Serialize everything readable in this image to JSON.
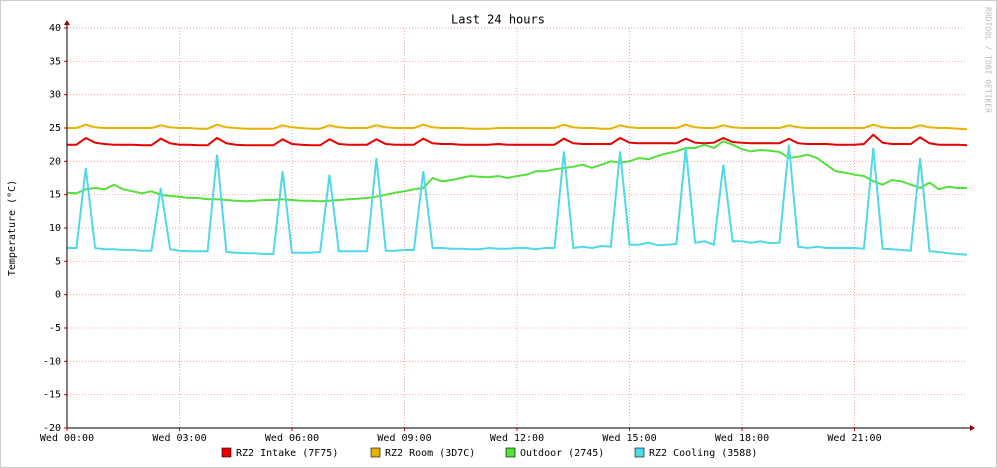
{
  "chart_data": {
    "type": "line",
    "title": "Last 24 hours",
    "y_label": "Temperature (°C)",
    "watermark": "RRDTOOL / TOBI OETIKER",
    "xlim": [
      0,
      24
    ],
    "xticks": [
      {
        "value": 0,
        "label": "Wed 00:00"
      },
      {
        "value": 3,
        "label": "Wed 03:00"
      },
      {
        "value": 6,
        "label": "Wed 06:00"
      },
      {
        "value": 9,
        "label": "Wed 09:00"
      },
      {
        "value": 12,
        "label": "Wed 12:00"
      },
      {
        "value": 15,
        "label": "Wed 15:00"
      },
      {
        "value": 18,
        "label": "Wed 18:00"
      },
      {
        "value": 21,
        "label": "Wed 21:00"
      }
    ],
    "ylim": [
      -20,
      40
    ],
    "yticks": [
      -20,
      -15,
      -10,
      -5,
      0,
      5,
      10,
      15,
      20,
      25,
      30,
      35,
      40
    ],
    "grid": true,
    "x": [
      0,
      0.25,
      0.5,
      0.75,
      1,
      1.25,
      1.5,
      1.75,
      2,
      2.25,
      2.5,
      2.75,
      3,
      3.25,
      3.5,
      3.75,
      4,
      4.25,
      4.5,
      4.75,
      5,
      5.25,
      5.5,
      5.75,
      6,
      6.25,
      6.5,
      6.75,
      7,
      7.25,
      7.5,
      7.75,
      8,
      8.25,
      8.5,
      8.75,
      9,
      9.25,
      9.5,
      9.75,
      10,
      10.25,
      10.5,
      10.75,
      11,
      11.25,
      11.5,
      11.75,
      12,
      12.25,
      12.5,
      12.75,
      13,
      13.25,
      13.5,
      13.75,
      14,
      14.25,
      14.5,
      14.75,
      15,
      15.25,
      15.5,
      15.75,
      16,
      16.25,
      16.5,
      16.75,
      17,
      17.25,
      17.5,
      17.75,
      18,
      18.25,
      18.5,
      18.75,
      19,
      19.25,
      19.5,
      19.75,
      20,
      20.25,
      20.5,
      20.75,
      21,
      21.25,
      21.5,
      21.75,
      22,
      22.25,
      22.5,
      22.75,
      23,
      23.25,
      23.5,
      23.75,
      24
    ],
    "series": [
      {
        "name": "RZ2 Intake (7F75)",
        "color": "#e60000",
        "values": [
          22.5,
          22.5,
          23.5,
          22.8,
          22.6,
          22.5,
          22.5,
          22.5,
          22.4,
          22.4,
          23.4,
          22.7,
          22.5,
          22.5,
          22.4,
          22.4,
          23.5,
          22.7,
          22.5,
          22.4,
          22.4,
          22.4,
          22.4,
          23.3,
          22.6,
          22.5,
          22.4,
          22.4,
          23.3,
          22.6,
          22.5,
          22.5,
          22.5,
          23.3,
          22.6,
          22.5,
          22.5,
          22.5,
          23.4,
          22.7,
          22.6,
          22.6,
          22.5,
          22.5,
          22.5,
          22.5,
          22.6,
          22.5,
          22.5,
          22.5,
          22.5,
          22.5,
          22.5,
          23.4,
          22.7,
          22.6,
          22.6,
          22.6,
          22.6,
          23.5,
          22.8,
          22.7,
          22.7,
          22.7,
          22.7,
          22.7,
          23.4,
          22.8,
          22.7,
          22.8,
          23.5,
          22.9,
          22.8,
          22.7,
          22.7,
          22.7,
          22.7,
          23.4,
          22.7,
          22.6,
          22.6,
          22.6,
          22.5,
          22.5,
          22.5,
          22.6,
          24,
          22.8,
          22.6,
          22.6,
          22.6,
          23.6,
          22.7,
          22.5,
          22.5,
          22.5,
          22.4
        ]
      },
      {
        "name": "RZ2 Room (3D7C)",
        "color": "#e6b400",
        "values": [
          25,
          25,
          25.5,
          25.1,
          25,
          25,
          25,
          25,
          25,
          25,
          25.4,
          25.1,
          25,
          25,
          24.9,
          24.9,
          25.5,
          25.1,
          25,
          24.9,
          24.9,
          24.9,
          24.9,
          25.4,
          25.1,
          25,
          24.9,
          24.9,
          25.4,
          25.1,
          25,
          25,
          25,
          25.4,
          25.1,
          25,
          25,
          25,
          25.5,
          25.1,
          25,
          25,
          25,
          24.9,
          24.9,
          24.9,
          25,
          25,
          25,
          25,
          25,
          25,
          25,
          25.5,
          25.1,
          25,
          25,
          24.9,
          24.9,
          25.4,
          25.1,
          25,
          25,
          25,
          25,
          25,
          25.5,
          25.1,
          25,
          25,
          25.4,
          25.1,
          25,
          25,
          25,
          25,
          25,
          25.4,
          25.1,
          25,
          25,
          25,
          25,
          25,
          25,
          25,
          25.5,
          25.1,
          25,
          25,
          25,
          25.4,
          25.1,
          25,
          25,
          24.9,
          24.8
        ]
      },
      {
        "name": "Outdoor (2745)",
        "color": "#55e03c",
        "values": [
          15.3,
          15.2,
          15.8,
          16,
          15.8,
          16.5,
          15.8,
          15.5,
          15.2,
          15.5,
          15,
          14.8,
          14.7,
          14.5,
          14.5,
          14.3,
          14.3,
          14.2,
          14.1,
          14,
          14.1,
          14.2,
          14.2,
          14.3,
          14.2,
          14.1,
          14.1,
          14,
          14.1,
          14.2,
          14.3,
          14.4,
          14.5,
          14.7,
          15,
          15.3,
          15.5,
          15.8,
          16,
          17.5,
          17,
          17.2,
          17.5,
          17.8,
          17.7,
          17.6,
          17.8,
          17.5,
          17.8,
          18,
          18.5,
          18.5,
          18.8,
          19,
          19.2,
          19.5,
          19,
          19.5,
          20,
          19.8,
          20,
          20.5,
          20.3,
          20.8,
          21.2,
          21.5,
          22,
          22,
          22.5,
          22,
          23,
          22.5,
          21.8,
          21.5,
          21.7,
          21.6,
          21.4,
          20.5,
          20.7,
          21,
          20.5,
          19.5,
          18.5,
          18.3,
          18,
          17.8,
          17,
          16.5,
          17.2,
          17,
          16.5,
          16,
          16.8,
          15.8,
          16.2,
          16,
          16
        ]
      },
      {
        "name": "RZ2 Cooling (3588)",
        "color": "#4fd8e6",
        "values": [
          7,
          7,
          19,
          7,
          6.8,
          6.8,
          6.7,
          6.7,
          6.6,
          6.6,
          16,
          6.8,
          6.6,
          6.5,
          6.5,
          6.5,
          21,
          6.4,
          6.3,
          6.2,
          6.2,
          6.1,
          6.1,
          18.5,
          6.3,
          6.3,
          6.3,
          6.4,
          18,
          6.5,
          6.5,
          6.5,
          6.5,
          20.5,
          6.6,
          6.6,
          6.7,
          6.7,
          18.5,
          7,
          7,
          6.9,
          6.9,
          6.8,
          6.8,
          7,
          6.9,
          6.9,
          7,
          7,
          6.8,
          7,
          7,
          21.5,
          7,
          7.2,
          7,
          7.3,
          7.2,
          21.5,
          7.5,
          7.5,
          7.8,
          7.4,
          7.5,
          7.6,
          22,
          7.8,
          8,
          7.5,
          19.5,
          8,
          8,
          7.8,
          8,
          7.7,
          7.8,
          22.5,
          7.2,
          7,
          7.2,
          7,
          7,
          7,
          7,
          6.9,
          22,
          6.9,
          6.8,
          6.7,
          6.6,
          20.5,
          6.5,
          6.4,
          6.2,
          6.1,
          6
        ]
      }
    ]
  }
}
